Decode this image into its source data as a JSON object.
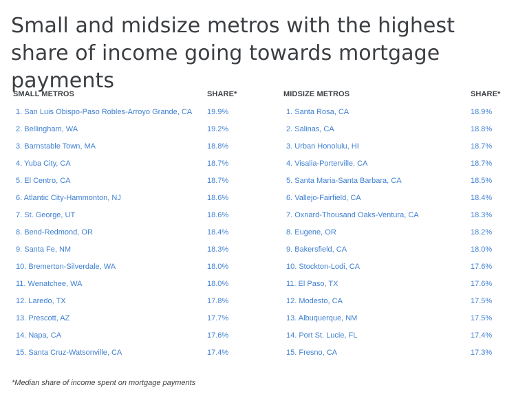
{
  "title": "Small and midsize metros with the highest share of income going towards mortgage payments",
  "small_table": {
    "header_name": "SMALL METROS",
    "header_share": "SHARE*",
    "rows": [
      {
        "name": "1. San Luis Obispo-Paso Robles-Arroyo Grande, CA",
        "share": "19.9%"
      },
      {
        "name": "2. Bellingham, WA",
        "share": "19.2%"
      },
      {
        "name": "3. Barnstable Town, MA",
        "share": "18.8%"
      },
      {
        "name": "4. Yuba City, CA",
        "share": "18.7%"
      },
      {
        "name": "5. El Centro, CA",
        "share": "18.7%"
      },
      {
        "name": "6. Atlantic City-Hammonton, NJ",
        "share": "18.6%"
      },
      {
        "name": "7. St. George, UT",
        "share": "18.6%"
      },
      {
        "name": "8. Bend-Redmond, OR",
        "share": "18.4%"
      },
      {
        "name": "9. Santa Fe, NM",
        "share": "18.3%"
      },
      {
        "name": "10. Bremerton-Silverdale, WA",
        "share": "18.0%"
      },
      {
        "name": "11. Wenatchee, WA",
        "share": "18.0%"
      },
      {
        "name": "12. Laredo, TX",
        "share": "17.8%"
      },
      {
        "name": "13. Prescott, AZ",
        "share": "17.7%"
      },
      {
        "name": "14. Napa, CA",
        "share": "17.6%"
      },
      {
        "name": "15. Santa Cruz-Watsonville, CA",
        "share": "17.4%"
      }
    ]
  },
  "mid_table": {
    "header_name": "MIDSIZE METROS",
    "header_share": "SHARE*",
    "rows": [
      {
        "name": "1. Santa Rosa, CA",
        "share": "18.9%"
      },
      {
        "name": "2. Salinas, CA",
        "share": "18.8%"
      },
      {
        "name": "3. Urban Honolulu, HI",
        "share": "18.7%"
      },
      {
        "name": "4. Visalia-Porterville, CA",
        "share": "18.7%"
      },
      {
        "name": "5. Santa Maria-Santa Barbara, CA",
        "share": "18.5%"
      },
      {
        "name": "6. Vallejo-Fairfield, CA",
        "share": "18.4%"
      },
      {
        "name": "7. Oxnard-Thousand Oaks-Ventura, CA",
        "share": "18.3%"
      },
      {
        "name": "8. Eugene, OR",
        "share": "18.2%"
      },
      {
        "name": "9. Bakersfield, CA",
        "share": "18.0%"
      },
      {
        "name": "10. Stockton-Lodi, CA",
        "share": "17.6%"
      },
      {
        "name": "11. El Paso, TX",
        "share": "17.6%"
      },
      {
        "name": "12. Modesto, CA",
        "share": "17.5%"
      },
      {
        "name": "13. Albuquerque, NM",
        "share": "17.5%"
      },
      {
        "name": "14. Port St. Lucie, FL",
        "share": "17.4%"
      },
      {
        "name": "15. Fresno, CA",
        "share": "17.3%"
      }
    ]
  },
  "footnote": "*Median share of income spent on mortgage payments",
  "colors": {
    "link": "#3f7fd0",
    "text": "#3f4246"
  }
}
